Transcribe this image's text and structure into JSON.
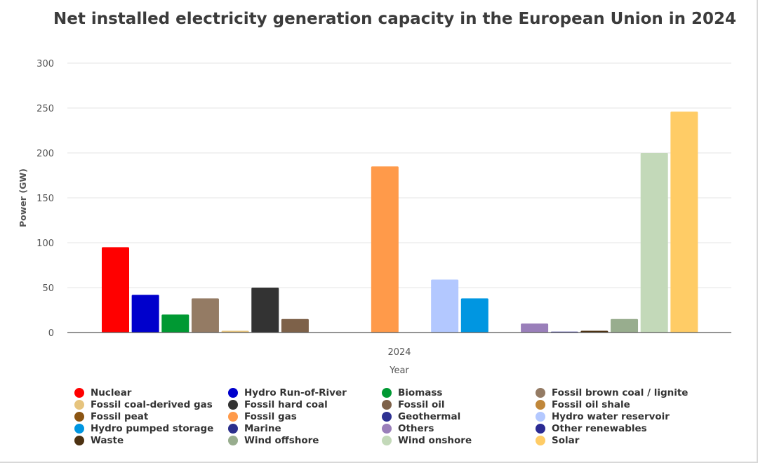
{
  "chart_data": {
    "type": "bar",
    "title": "Net installed electricity generation capacity in the European Union in 2024",
    "xlabel": "Year",
    "ylabel": "Power (GW)",
    "categories": [
      "2024"
    ],
    "ylim": [
      0,
      300
    ],
    "yticks": [
      0,
      50,
      100,
      150,
      200,
      250,
      300
    ],
    "grid": true,
    "legend_position": "bottom",
    "series": [
      {
        "name": "Nuclear",
        "value": 95,
        "color": "#ff0000"
      },
      {
        "name": "Hydro Run-of-River",
        "value": 42,
        "color": "#0000cc"
      },
      {
        "name": "Biomass",
        "value": 20,
        "color": "#009933"
      },
      {
        "name": "Fossil brown coal / lignite",
        "value": 38,
        "color": "#947b64"
      },
      {
        "name": "Fossil coal-derived gas",
        "value": 2,
        "color": "#e6c47e"
      },
      {
        "name": "Fossil hard coal",
        "value": 50,
        "color": "#333333"
      },
      {
        "name": "Fossil oil",
        "value": 15,
        "color": "#7d6149"
      },
      {
        "name": "Fossil oil shale",
        "value": 0,
        "color": "#c0873a"
      },
      {
        "name": "Fossil peat",
        "value": 0,
        "color": "#8b5513"
      },
      {
        "name": "Fossil gas",
        "value": 185,
        "color": "#ff9a4a"
      },
      {
        "name": "Geothermal",
        "value": 0,
        "color": "#2e3192"
      },
      {
        "name": "Hydro water reservoir",
        "value": 59,
        "color": "#b3c8ff"
      },
      {
        "name": "Hydro pumped storage",
        "value": 38,
        "color": "#0096e1"
      },
      {
        "name": "Marine",
        "value": 0,
        "color": "#2b2f8c"
      },
      {
        "name": "Others",
        "value": 10,
        "color": "#9a7fba"
      },
      {
        "name": "Other renewables",
        "value": 1,
        "color": "#2b2a93"
      },
      {
        "name": "Waste",
        "value": 2,
        "color": "#4d3212"
      },
      {
        "name": "Wind offshore",
        "value": 15,
        "color": "#98ad8e"
      },
      {
        "name": "Wind onshore",
        "value": 200,
        "color": "#c3d9b9"
      },
      {
        "name": "Solar",
        "value": 246,
        "color": "#ffcc66"
      }
    ]
  }
}
